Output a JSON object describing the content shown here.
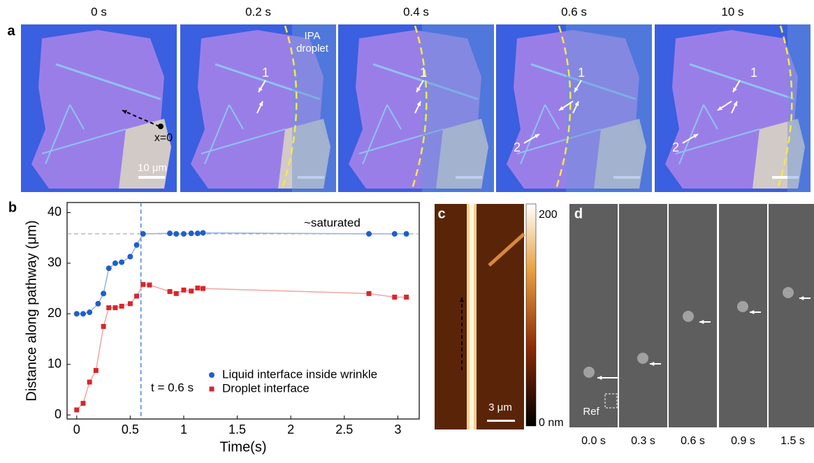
{
  "panel_a": {
    "label": "a",
    "frames": [
      "0 s",
      "0.2 s",
      "0.4 s",
      "0.6 s",
      "10 s"
    ],
    "origin_label": "x=0",
    "droplet_label": [
      "IPA",
      "droplet"
    ],
    "scale_bar": "10 μm",
    "wrinkle_labels": [
      "1",
      "2"
    ]
  },
  "chart_data": {
    "type": "line",
    "label": "b",
    "xlabel": "Time(s)",
    "ylabel": "Distance along pathway (μm)",
    "xlim": [
      -0.09,
      3.2
    ],
    "xticks": [
      0,
      0.5,
      1,
      1.5,
      2,
      2.5,
      3
    ],
    "ylim": [
      -0.8,
      42
    ],
    "yticks": [
      0,
      10,
      20,
      30,
      40
    ],
    "hline": 35.8,
    "vline": 0.6,
    "saturation_label": "~saturated",
    "time_label": "t = 0.6 s",
    "legend": "lower right",
    "series": [
      {
        "name": "Liquid interface inside wrinkle",
        "color": "#1f5fc8",
        "line_color": "#8fb2e6",
        "marker": "circle",
        "x": [
          0,
          0.06,
          0.12,
          0.2,
          0.25,
          0.3,
          0.36,
          0.42,
          0.5,
          0.56,
          0.62,
          0.87,
          0.93,
          1.0,
          1.07,
          1.13,
          1.18,
          2.73,
          2.97,
          3.08
        ],
        "values": [
          20,
          20,
          20.3,
          22,
          24,
          29,
          30,
          30.2,
          31.3,
          33.6,
          35.8,
          35.9,
          35.8,
          35.8,
          35.9,
          35.9,
          36,
          35.8,
          35.8,
          35.8
        ]
      },
      {
        "name": "Droplet interface",
        "color": "#d9262b",
        "line_color": "#f2a3a3",
        "marker": "square",
        "x": [
          0,
          0.06,
          0.12,
          0.18,
          0.25,
          0.3,
          0.36,
          0.42,
          0.5,
          0.56,
          0.62,
          0.68,
          0.87,
          0.93,
          1.0,
          1.07,
          1.13,
          1.18,
          2.73,
          2.97,
          3.08
        ],
        "values": [
          1,
          2.3,
          6.5,
          8.8,
          17.5,
          21.2,
          21.2,
          21.5,
          22,
          23.5,
          25.8,
          25.7,
          24.4,
          24,
          24.7,
          24.5,
          25.1,
          25,
          24,
          23.3,
          23.3
        ]
      }
    ]
  },
  "panel_c": {
    "label": "c",
    "colorbar_max": "200",
    "colorbar_min": "0 nm",
    "scale_bar": "3 μm"
  },
  "panel_d": {
    "label": "d",
    "frames": [
      "0.0 s",
      "0.3 s",
      "0.6 s",
      "0.9 s",
      "1.5 s"
    ],
    "ref_label": "Ref"
  }
}
